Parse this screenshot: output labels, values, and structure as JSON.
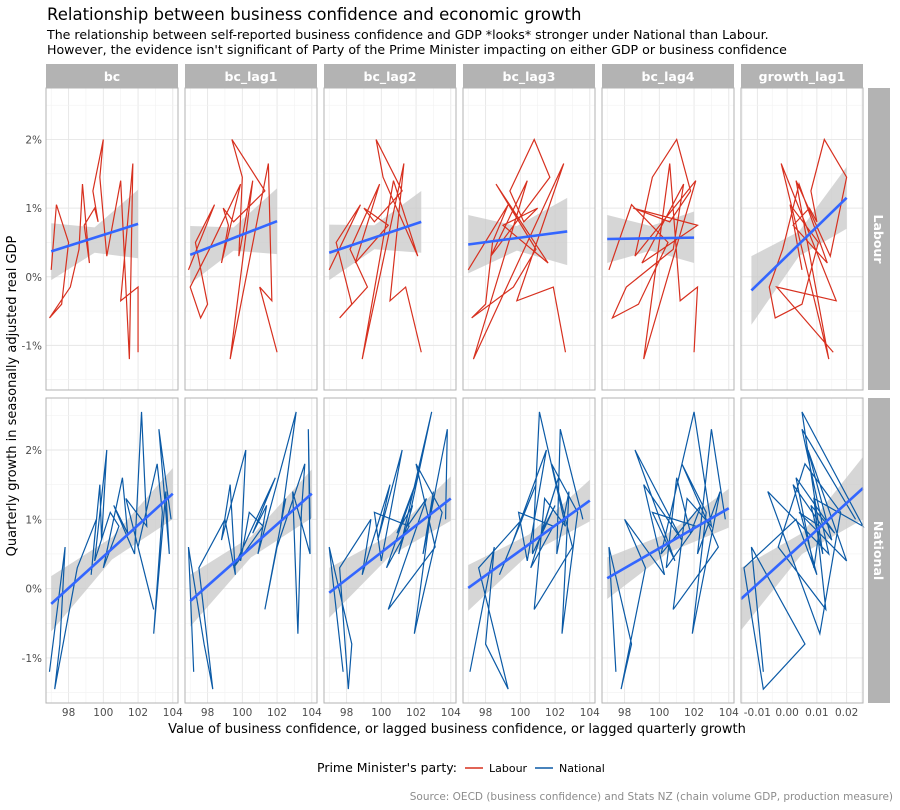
{
  "title": "Relationship between business confidence and economic growth",
  "subtitle_lines": [
    "The relationship between self-reported business confidence and GDP *looks* stronger under National than Labour.",
    "However, the evidence isn't significant of Party of the Prime Minister impacting on either GDP or business confidence"
  ],
  "caption": "Source: OECD (business confidence) and Stats NZ (chain volume GDP, production measure)",
  "legend": {
    "title": "Prime Minister's party:",
    "position": "bottom",
    "entries": [
      {
        "label": "Labour",
        "color": "#d7301f"
      },
      {
        "label": "National",
        "color": "#0b5aa6"
      }
    ]
  },
  "colors": {
    "trend": "#3366ff",
    "ribbon": "#c8c8c8",
    "strip": "#b3b3b3"
  },
  "chart_data": {
    "type": "line",
    "xlabel": "Value of business confidence, or lagged business confidence, or lagged quarterly growth",
    "ylabel": "Quarterly growth in seasonally adjusted real GDP",
    "columns": [
      "bc",
      "bc_lag1",
      "bc_lag2",
      "bc_lag3",
      "bc_lag4",
      "growth_lag1"
    ],
    "rows": [
      "Labour",
      "National"
    ],
    "ylim": [
      -1.65,
      2.75
    ],
    "yticks": [
      -1,
      0,
      1,
      2
    ],
    "ytick_labels": [
      "-1%",
      "0%",
      "1%",
      "2%"
    ],
    "xlim_bc": [
      96.7,
      104.3
    ],
    "xticks_bc": [
      "98",
      "100",
      "102",
      "104"
    ],
    "xlim_growth": [
      -0.0155,
      0.0255
    ],
    "xticks_growth": [
      "-0.01",
      "0.00",
      "0.01",
      "0.02"
    ],
    "grid": true,
    "panels": {
      "Labour": {
        "y": [
          0.1,
          1.05,
          0.5,
          -0.4,
          -0.6,
          -0.15,
          0.4,
          1.35,
          0.2,
          0.75,
          1.0,
          0.8,
          1.25,
          2.0,
          1.45,
          0.3,
          1.4,
          -1.2,
          1.65,
          -0.35,
          -0.15,
          -1.1
        ],
        "x": {
          "bc": [
            97.0,
            97.3,
            98.0,
            97.6,
            96.9,
            98.1,
            98.6,
            98.8,
            99.2,
            98.9,
            99.5,
            99.7,
            99.4,
            100.0,
            99.8,
            100.2,
            101.0,
            101.5,
            101.7,
            101.0,
            102.0,
            102.0
          ],
          "bc_lag1": [
            96.9,
            98.4,
            97.3,
            98.0,
            97.6,
            97.0,
            98.1,
            99.9,
            98.8,
            99.2,
            98.9,
            99.5,
            101.3,
            99.4,
            100.0,
            99.8,
            100.6,
            99.3,
            101.5,
            101.7,
            101.0,
            102.0
          ],
          "bc_lag2": [
            97.0,
            98.8,
            97.4,
            98.3,
            97.6,
            99.2,
            98.2,
            99.9,
            98.5,
            100.4,
            99.0,
            99.6,
            101.2,
            99.7,
            100.1,
            102.1,
            100.7,
            98.9,
            101.3,
            100.5,
            101.4,
            102.3
          ],
          "bc_lag3": [
            97.0,
            99.3,
            98.4,
            98.0,
            97.2,
            99.6,
            100.9,
            98.6,
            101.6,
            99.0,
            101.0,
            100.2,
            99.4,
            100.8,
            101.7,
            98.3,
            100.4,
            97.3,
            102.5,
            99.8,
            101.9,
            102.6
          ],
          "bc_lag4": [
            97.1,
            98.4,
            100.5,
            98.8,
            97.3,
            98.1,
            100.8,
            101.4,
            99.0,
            102.2,
            98.5,
            100.6,
            101.8,
            101.0,
            99.6,
            98.6,
            102.1,
            99.1,
            100.6,
            101.2,
            102.2,
            102.0
          ],
          "growth_lag1": [
            0.005,
            0.001,
            0.0105,
            0.005,
            -0.004,
            -0.006,
            -0.0015,
            0.004,
            0.0135,
            0.002,
            0.0075,
            0.01,
            0.008,
            0.0125,
            0.02,
            0.0145,
            0.003,
            0.014,
            -0.002,
            0.0165,
            -0.0035,
            0.0155
          ]
        },
        "fit": {
          "bc": [
            [
              97,
              0.37,
              -0.05,
              0.78
            ],
            [
              99.5,
              0.57,
              0.35,
              0.72
            ],
            [
              102,
              0.77,
              0.27,
              1.27
            ]
          ],
          "bc_lag1": [
            [
              97,
              0.32,
              -0.1,
              0.74
            ],
            [
              99.5,
              0.56,
              0.38,
              0.72
            ],
            [
              102,
              0.81,
              0.33,
              1.29
            ]
          ],
          "bc_lag2": [
            [
              97,
              0.35,
              -0.05,
              0.76
            ],
            [
              99.6,
              0.58,
              0.4,
              0.75
            ],
            [
              102.3,
              0.8,
              0.35,
              1.25
            ]
          ],
          "bc_lag3": [
            [
              97,
              0.47,
              0.05,
              0.9
            ],
            [
              99.8,
              0.56,
              0.38,
              0.74
            ],
            [
              102.7,
              0.66,
              0.17,
              1.15
            ]
          ],
          "bc_lag4": [
            [
              97,
              0.55,
              0.2,
              0.9
            ],
            [
              99.5,
              0.56,
              0.38,
              0.74
            ],
            [
              102,
              0.57,
              0.2,
              0.95
            ]
          ],
          "growth_lag1": [
            [
              -0.012,
              -0.2,
              -0.7,
              0.3
            ],
            [
              0.004,
              0.48,
              0.3,
              0.66
            ],
            [
              0.02,
              1.15,
              0.7,
              1.6
            ]
          ]
        }
      },
      "National": {
        "y": [
          -1.2,
          0.6,
          -0.8,
          -1.45,
          0.3,
          1.0,
          0.2,
          1.5,
          0.7,
          2.0,
          0.4,
          1.1,
          0.9,
          0.3,
          1.6,
          0.8,
          1.2,
          0.5,
          2.55,
          0.9,
          1.3,
          -0.3,
          0.6,
          1.8,
          1.1,
          -0.65,
          1.4,
          0.5,
          2.3,
          1.0
        ],
        "x": {
          "bc": [
            96.9,
            97.8,
            97.5,
            97.2,
            98.5,
            99.6,
            99.3,
            99.8,
            99.9,
            100.2,
            99.5,
            100.4,
            100.9,
            100.0,
            101.1,
            101.4,
            100.6,
            101.8,
            102.2,
            102.5,
            101.3,
            102.9,
            102.0,
            103.1,
            103.4,
            102.9,
            103.6,
            103.8,
            103.2,
            103.9
          ],
          "bc_lag1": [
            97.2,
            96.9,
            97.8,
            98.3,
            97.5,
            99.0,
            99.6,
            99.3,
            98.8,
            100.2,
            99.9,
            100.4,
            101.2,
            99.5,
            101.9,
            100.6,
            101.4,
            100.9,
            103.1,
            102.2,
            102.5,
            101.3,
            102.0,
            103.6,
            103.4,
            103.2,
            102.9,
            103.9,
            103.8,
            103.9
          ],
          "bc_lag2": [
            97.8,
            97.0,
            98.3,
            98.1,
            97.6,
            99.4,
            98.9,
            100.5,
            99.8,
            101.2,
            100.0,
            99.6,
            101.6,
            100.3,
            102.1,
            100.9,
            101.8,
            101.0,
            102.9,
            101.5,
            102.6,
            100.4,
            103.1,
            102.0,
            103.5,
            101.9,
            103.0,
            102.4,
            103.8,
            103.7
          ],
          "bc_lag3": [
            97.1,
            98.5,
            98.0,
            99.3,
            97.6,
            100.1,
            98.8,
            100.9,
            99.6,
            101.5,
            100.4,
            99.9,
            101.9,
            100.6,
            102.2,
            101.2,
            102.0,
            100.7,
            101.1,
            102.6,
            101.4,
            100.8,
            103.0,
            101.8,
            103.3,
            102.4,
            102.8,
            102.1,
            102.3,
            103.6
          ],
          "bc_lag4": [
            97.5,
            97.1,
            98.4,
            97.8,
            99.2,
            98.0,
            100.3,
            99.1,
            101.3,
            98.6,
            100.9,
            99.6,
            102.1,
            100.4,
            101.0,
            101.8,
            102.4,
            100.1,
            102.0,
            103.0,
            101.6,
            100.8,
            103.4,
            101.3,
            102.7,
            101.9,
            103.5,
            102.2,
            103.0,
            103.8
          ],
          "growth_lag1": [
            -0.008,
            -0.012,
            0.006,
            -0.008,
            -0.0145,
            0.003,
            0.01,
            0.002,
            0.015,
            0.007,
            0.02,
            0.004,
            0.011,
            0.009,
            0.003,
            0.016,
            0.008,
            0.012,
            0.005,
            0.0255,
            0.009,
            0.013,
            -0.003,
            0.006,
            0.018,
            0.011,
            -0.0065,
            0.014,
            0.005,
            0.023
          ]
        },
        "fit": {
          "bc": [
            [
              97,
              -0.22,
              -0.62,
              0.18
            ],
            [
              100.5,
              0.58,
              0.42,
              0.74
            ],
            [
              104,
              1.37,
              1.0,
              1.74
            ]
          ],
          "bc_lag1": [
            [
              97,
              -0.18,
              -0.55,
              0.2
            ],
            [
              100.5,
              0.6,
              0.45,
              0.75
            ],
            [
              104,
              1.37,
              1.02,
              1.72
            ]
          ],
          "bc_lag2": [
            [
              97,
              -0.06,
              -0.42,
              0.3
            ],
            [
              100.5,
              0.62,
              0.47,
              0.77
            ],
            [
              104,
              1.3,
              0.98,
              1.62
            ]
          ],
          "bc_lag3": [
            [
              97,
              0.01,
              -0.32,
              0.34
            ],
            [
              100.5,
              0.64,
              0.5,
              0.78
            ],
            [
              104,
              1.27,
              0.97,
              1.57
            ]
          ],
          "bc_lag4": [
            [
              97,
              0.15,
              -0.15,
              0.45
            ],
            [
              100.5,
              0.66,
              0.52,
              0.8
            ],
            [
              104,
              1.16,
              0.88,
              1.44
            ]
          ],
          "growth_lag1": [
            [
              -0.0155,
              -0.15,
              -0.6,
              0.3
            ],
            [
              0.005,
              0.65,
              0.5,
              0.8
            ],
            [
              0.0255,
              1.45,
              1.0,
              1.9
            ]
          ]
        }
      }
    }
  }
}
